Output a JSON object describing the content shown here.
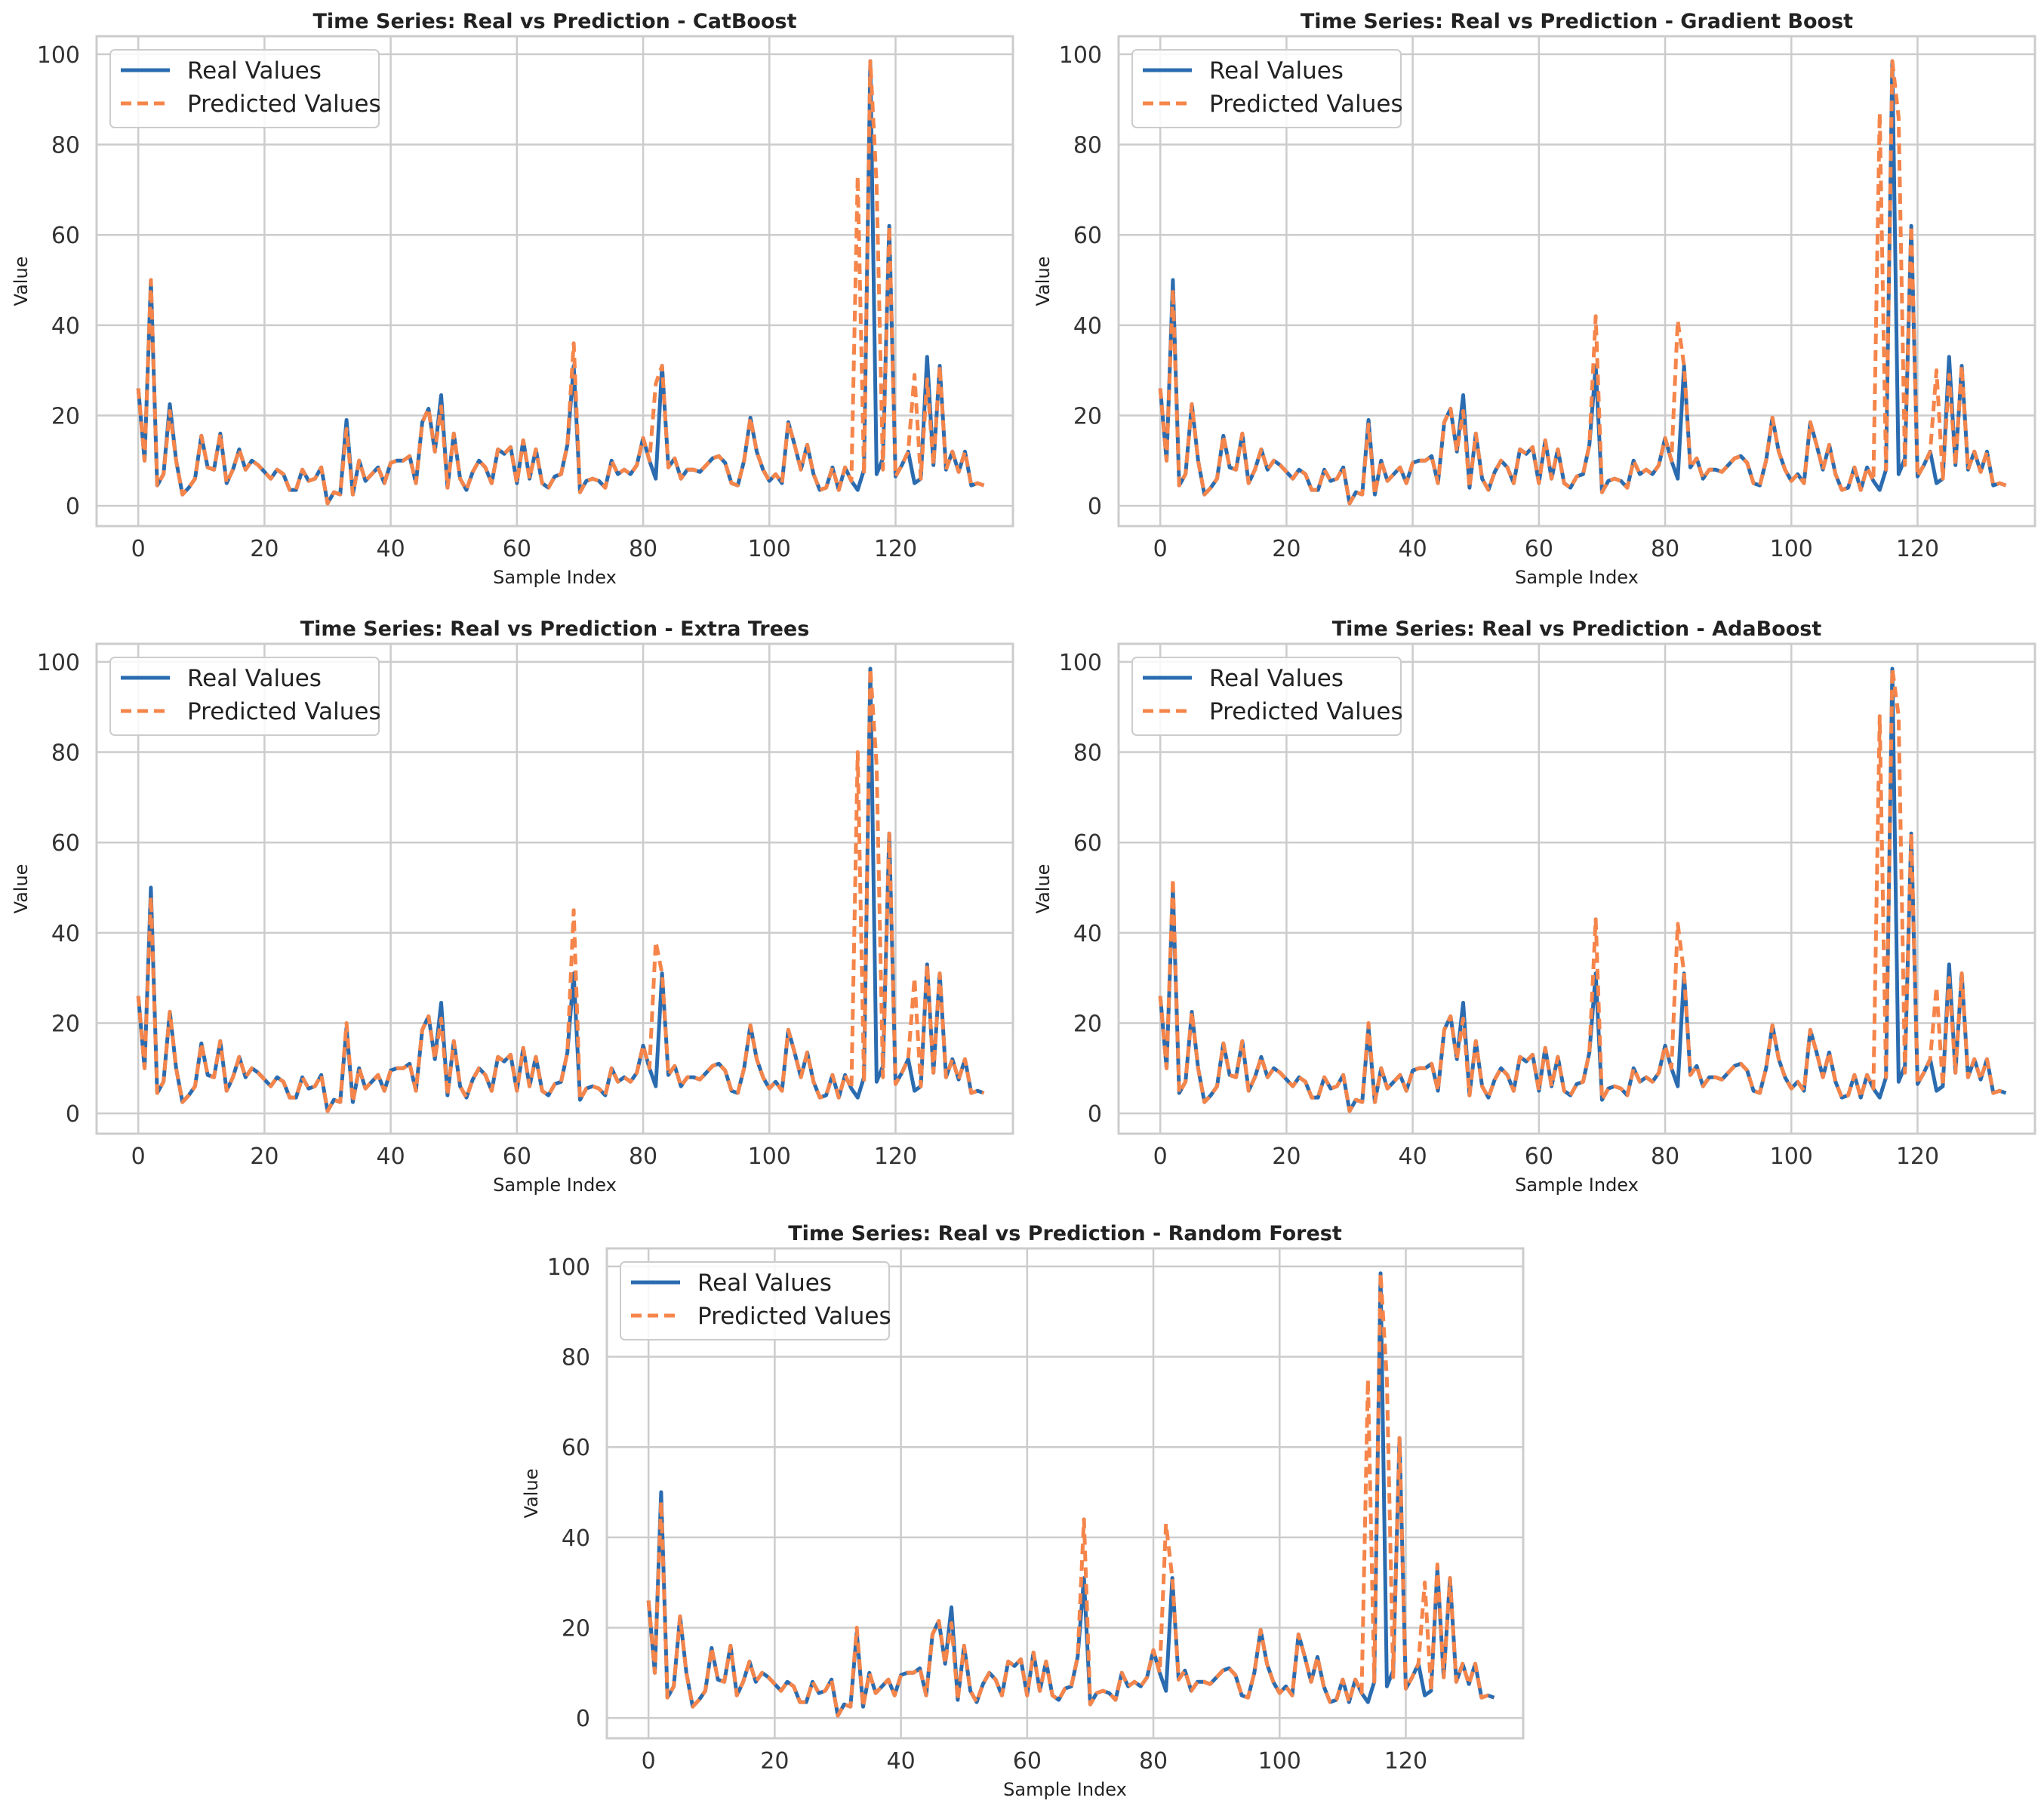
{
  "figure": {
    "colors": {
      "real": "#2b6cb0",
      "predicted": "#f5854a",
      "grid": "#cccccc",
      "frame": "#cccccc"
    }
  },
  "chart_data": [
    {
      "type": "line",
      "title": "Time Series: Real vs Prediction - CatBoost",
      "xlabel": "Sample Index",
      "ylabel": "Value",
      "xlim": [
        -6.6,
        138.6
      ],
      "ylim": [
        -4.5,
        104
      ],
      "xticks": [
        0,
        20,
        40,
        60,
        80,
        100,
        120
      ],
      "yticks": [
        0,
        20,
        40,
        60,
        80,
        100
      ],
      "grid": true,
      "legend": "top-left",
      "series": [
        {
          "name": "Real Values",
          "style": "solid",
          "override": {}
        },
        {
          "name": "Predicted Values",
          "style": "dashed",
          "override": {
            "2": 50,
            "5": 21,
            "33": 17,
            "48": 22,
            "69": 36,
            "82": 27,
            "114": 73,
            "115": 7,
            "117": 71,
            "118": 8,
            "123": 29,
            "125": 28
          }
        }
      ]
    },
    {
      "type": "line",
      "title": "Time Series: Real vs Prediction - Gradient Boost",
      "xlabel": "Sample Index",
      "ylabel": "Value",
      "xlim": [
        -6.6,
        138.6
      ],
      "ylim": [
        -4.5,
        104
      ],
      "xticks": [
        0,
        20,
        40,
        60,
        80,
        100,
        120
      ],
      "yticks": [
        0,
        20,
        40,
        60,
        80,
        100
      ],
      "grid": true,
      "legend": "top-left",
      "series": [
        {
          "name": "Real Values",
          "style": "solid",
          "override": {}
        },
        {
          "name": "Predicted Values",
          "style": "dashed",
          "override": {
            "2": 48,
            "33": 18,
            "48": 21,
            "69": 42,
            "82": 41,
            "114": 87,
            "115": 8,
            "117": 86,
            "118": 9,
            "123": 30,
            "125": 29
          }
        }
      ]
    },
    {
      "type": "line",
      "title": "Time Series: Real vs Prediction - Extra Trees",
      "xlabel": "Sample Index",
      "ylabel": "Value",
      "xlim": [
        -6.6,
        138.6
      ],
      "ylim": [
        -4.5,
        104
      ],
      "xticks": [
        0,
        20,
        40,
        60,
        80,
        100,
        120
      ],
      "yticks": [
        0,
        20,
        40,
        60,
        80,
        100
      ],
      "grid": true,
      "legend": "top-left",
      "series": [
        {
          "name": "Real Values",
          "style": "solid",
          "override": {}
        },
        {
          "name": "Predicted Values",
          "style": "dashed",
          "override": {
            "2": 48,
            "33": 20,
            "48": 21,
            "69": 45,
            "82": 38,
            "114": 80,
            "115": 7,
            "117": 77,
            "118": 8,
            "123": 30,
            "125": 33
          }
        }
      ]
    },
    {
      "type": "line",
      "title": "Time Series: Real vs Prediction - AdaBoost",
      "xlabel": "Sample Index",
      "ylabel": "Value",
      "xlim": [
        -6.6,
        138.6
      ],
      "ylim": [
        -4.5,
        104
      ],
      "xticks": [
        0,
        20,
        40,
        60,
        80,
        100,
        120
      ],
      "yticks": [
        0,
        20,
        40,
        60,
        80,
        100
      ],
      "grid": true,
      "legend": "top-left",
      "series": [
        {
          "name": "Real Values",
          "style": "solid",
          "override": {}
        },
        {
          "name": "Predicted Values",
          "style": "dashed",
          "override": {
            "2": 52,
            "33": 20,
            "48": 21,
            "69": 43,
            "82": 42,
            "114": 88,
            "115": 8,
            "117": 88,
            "118": 9,
            "123": 28,
            "125": 30
          }
        }
      ]
    },
    {
      "type": "line",
      "title": "Time Series: Real vs Prediction - Random Forest",
      "xlabel": "Sample Index",
      "ylabel": "Value",
      "xlim": [
        -6.6,
        138.6
      ],
      "ylim": [
        -4.5,
        104
      ],
      "xticks": [
        0,
        20,
        40,
        60,
        80,
        100,
        120
      ],
      "yticks": [
        0,
        20,
        40,
        60,
        80,
        100
      ],
      "grid": true,
      "legend": "top-left",
      "series": [
        {
          "name": "Real Values",
          "style": "solid",
          "override": {}
        },
        {
          "name": "Predicted Values",
          "style": "dashed",
          "override": {
            "2": 48,
            "33": 20,
            "48": 21,
            "69": 44,
            "82": 43,
            "114": 75,
            "115": 8,
            "117": 75,
            "118": 9,
            "123": 30,
            "125": 34
          }
        }
      ]
    }
  ],
  "real_values": [
    26,
    10,
    50,
    4.5,
    7,
    22.5,
    10,
    2.5,
    4,
    6,
    15.5,
    8.5,
    8,
    16,
    5,
    8,
    12.5,
    8,
    10,
    9,
    7.5,
    6,
    8,
    7,
    3.5,
    3.5,
    8,
    5.5,
    6,
    8.5,
    0.5,
    3,
    2.5,
    19,
    2.5,
    10,
    5.5,
    7,
    8.5,
    5,
    9.5,
    10,
    10,
    11,
    5,
    18.5,
    21.5,
    12,
    24.5,
    4,
    16,
    6,
    3.5,
    7.5,
    10,
    8.5,
    5,
    12.5,
    11.5,
    13,
    5,
    14.5,
    6,
    12.5,
    5,
    4,
    6.5,
    7,
    13.5,
    31,
    3,
    5.5,
    6,
    5.5,
    4,
    10,
    7,
    8,
    7,
    9,
    15,
    10,
    6,
    31,
    8.5,
    10.5,
    6,
    8,
    8,
    7.5,
    9,
    10.5,
    11,
    9.5,
    5,
    4.5,
    10,
    19.5,
    12,
    8,
    5.5,
    7,
    5,
    18.5,
    13.5,
    8,
    13.5,
    7,
    3.5,
    4,
    8.5,
    3.5,
    8.5,
    5.5,
    3.5,
    8,
    98.5,
    7,
    10.5,
    62,
    6.5,
    9,
    12,
    5,
    6,
    33,
    9,
    31,
    8,
    12,
    7.5,
    12,
    4.5,
    5,
    4.5
  ]
}
